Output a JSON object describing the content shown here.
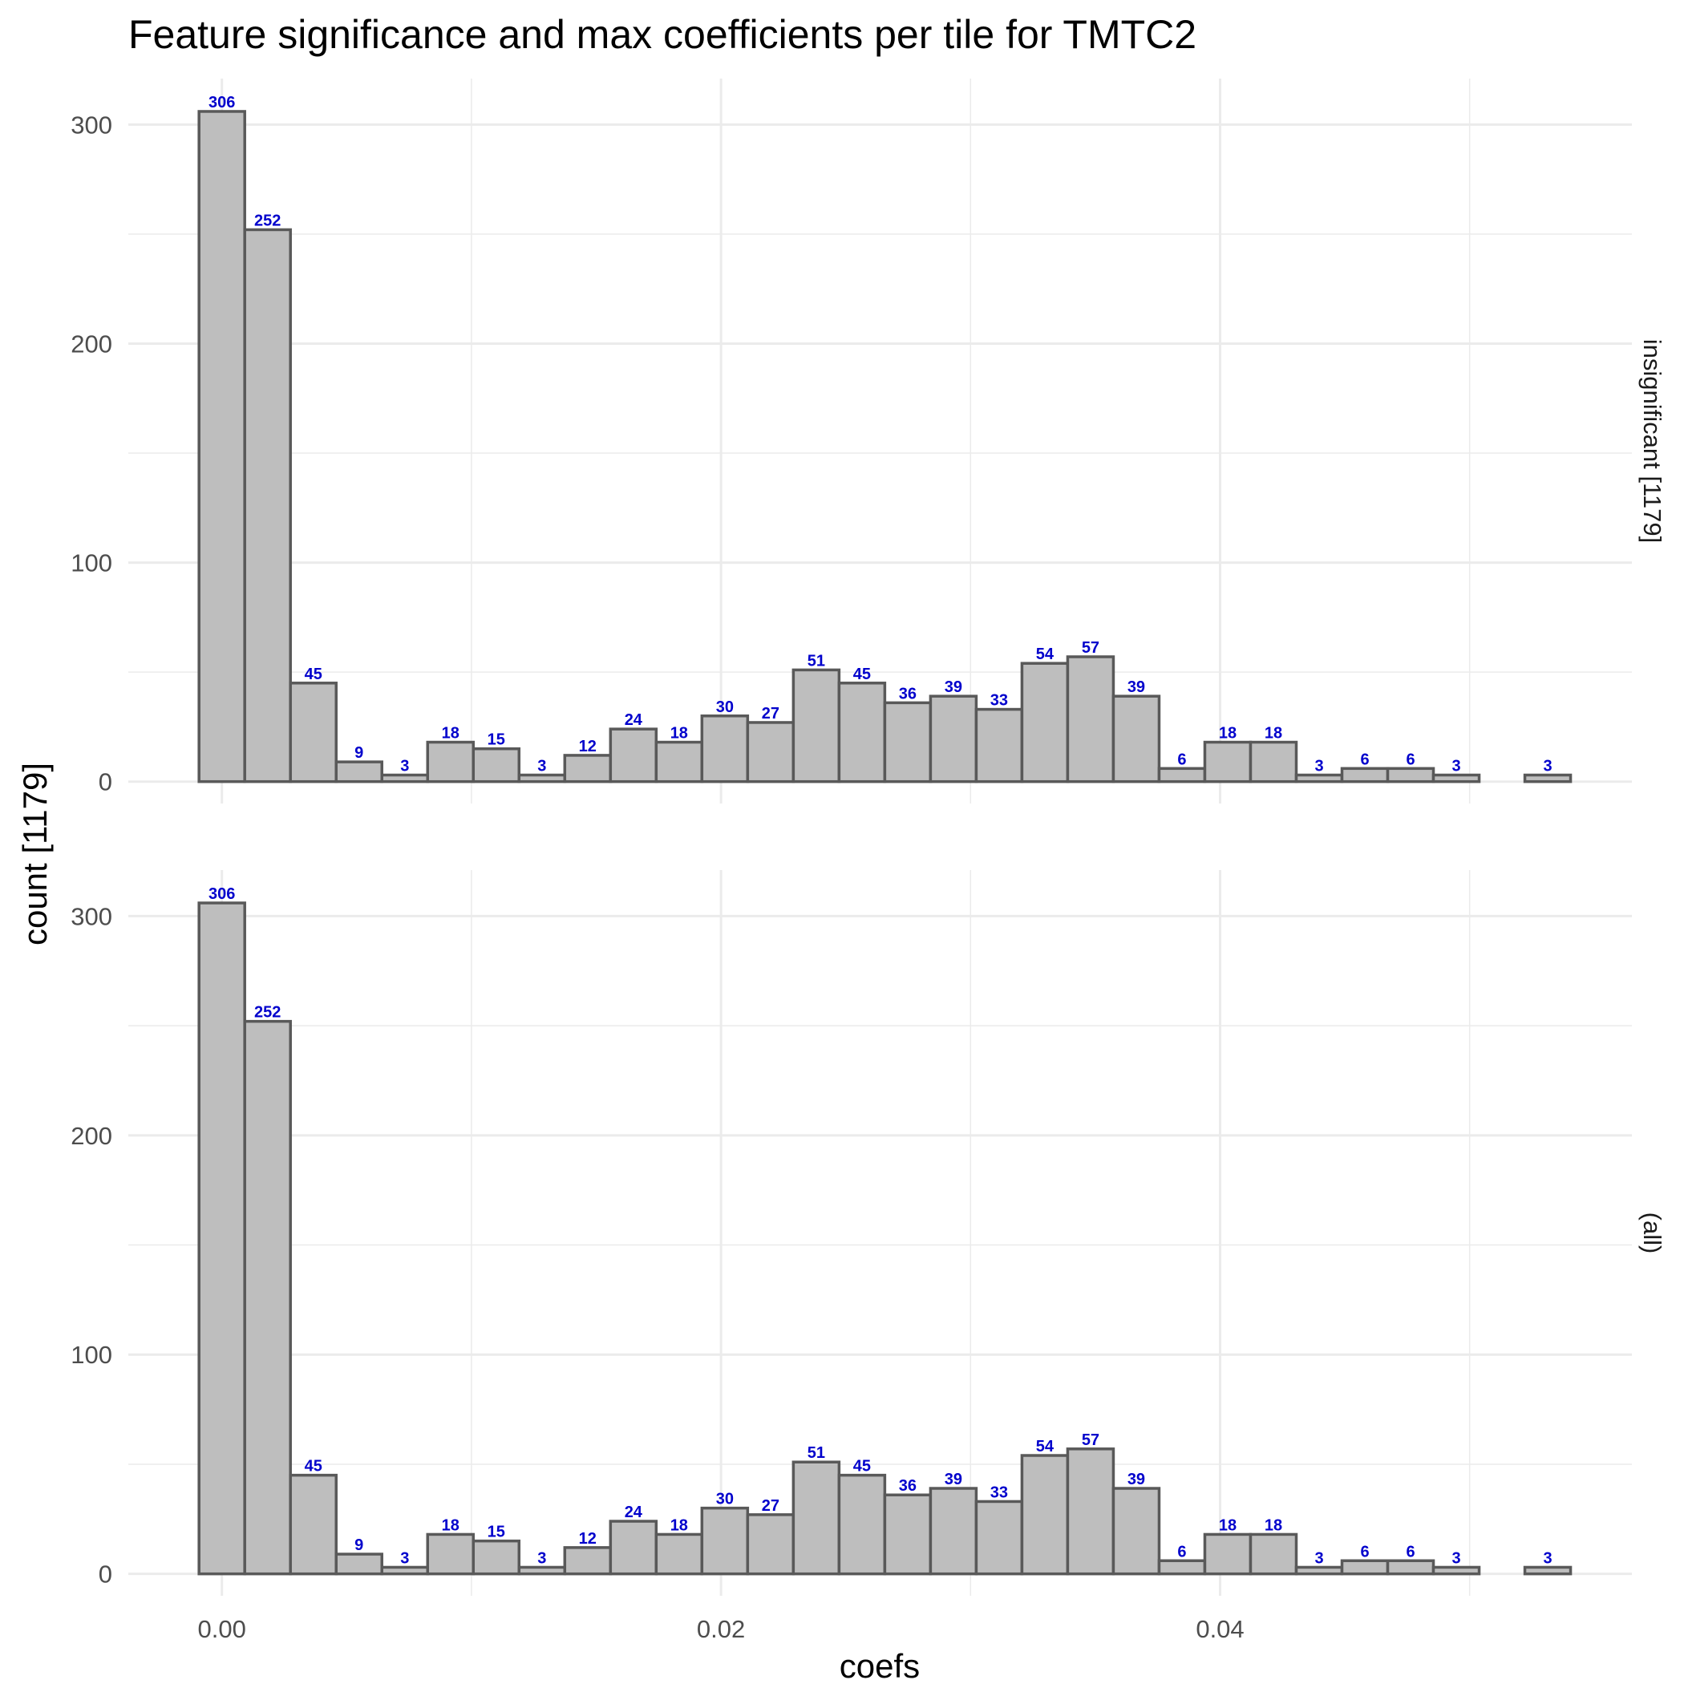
{
  "chart_data": {
    "type": "bar",
    "title": "Feature significance and max coefficients per tile for TMTC2",
    "xlabel": "coefs",
    "ylabel": "count [1179]",
    "bin_width": 0.001832,
    "x_start": -0.000916,
    "xlim": [
      -0.00375,
      0.0565
    ],
    "ylim": [
      -10,
      321
    ],
    "x_ticks": [
      0.0,
      0.02,
      0.04
    ],
    "x_tick_labels": [
      "0.00",
      "0.02",
      "0.04"
    ],
    "x_minor_ticks": [
      0.01,
      0.03,
      0.05
    ],
    "y_ticks": [
      0,
      100,
      200,
      300
    ],
    "y_tick_labels": [
      "0",
      "100",
      "200",
      "300"
    ],
    "y_minor_ticks": [
      50,
      150,
      250
    ],
    "panels": [
      {
        "name": "insignificant [1179]",
        "counts": [
          306,
          252,
          45,
          9,
          3,
          18,
          15,
          3,
          12,
          24,
          18,
          30,
          27,
          51,
          45,
          36,
          39,
          33,
          54,
          57,
          39,
          6,
          18,
          18,
          3,
          6,
          6,
          3,
          0,
          3
        ],
        "labels": [
          "306",
          "252",
          "45",
          "9",
          "3",
          "18",
          "15",
          "3",
          "12",
          "24",
          "18",
          "30",
          "27",
          "51",
          "45",
          "36",
          "39",
          "33",
          "54",
          "57",
          "39",
          "6",
          "18",
          "18",
          "3",
          "6",
          "6",
          "3",
          "",
          "3"
        ]
      },
      {
        "name": "(all)",
        "counts": [
          306,
          252,
          45,
          9,
          3,
          18,
          15,
          3,
          12,
          24,
          18,
          30,
          27,
          51,
          45,
          36,
          39,
          33,
          54,
          57,
          39,
          6,
          18,
          18,
          3,
          6,
          6,
          3,
          0,
          3
        ],
        "labels": [
          "306",
          "252",
          "45",
          "9",
          "3",
          "18",
          "15",
          "3",
          "12",
          "24",
          "18",
          "30",
          "27",
          "51",
          "45",
          "36",
          "39",
          "33",
          "54",
          "57",
          "39",
          "6",
          "18",
          "18",
          "3",
          "6",
          "6",
          "3",
          "",
          "3"
        ]
      }
    ]
  }
}
